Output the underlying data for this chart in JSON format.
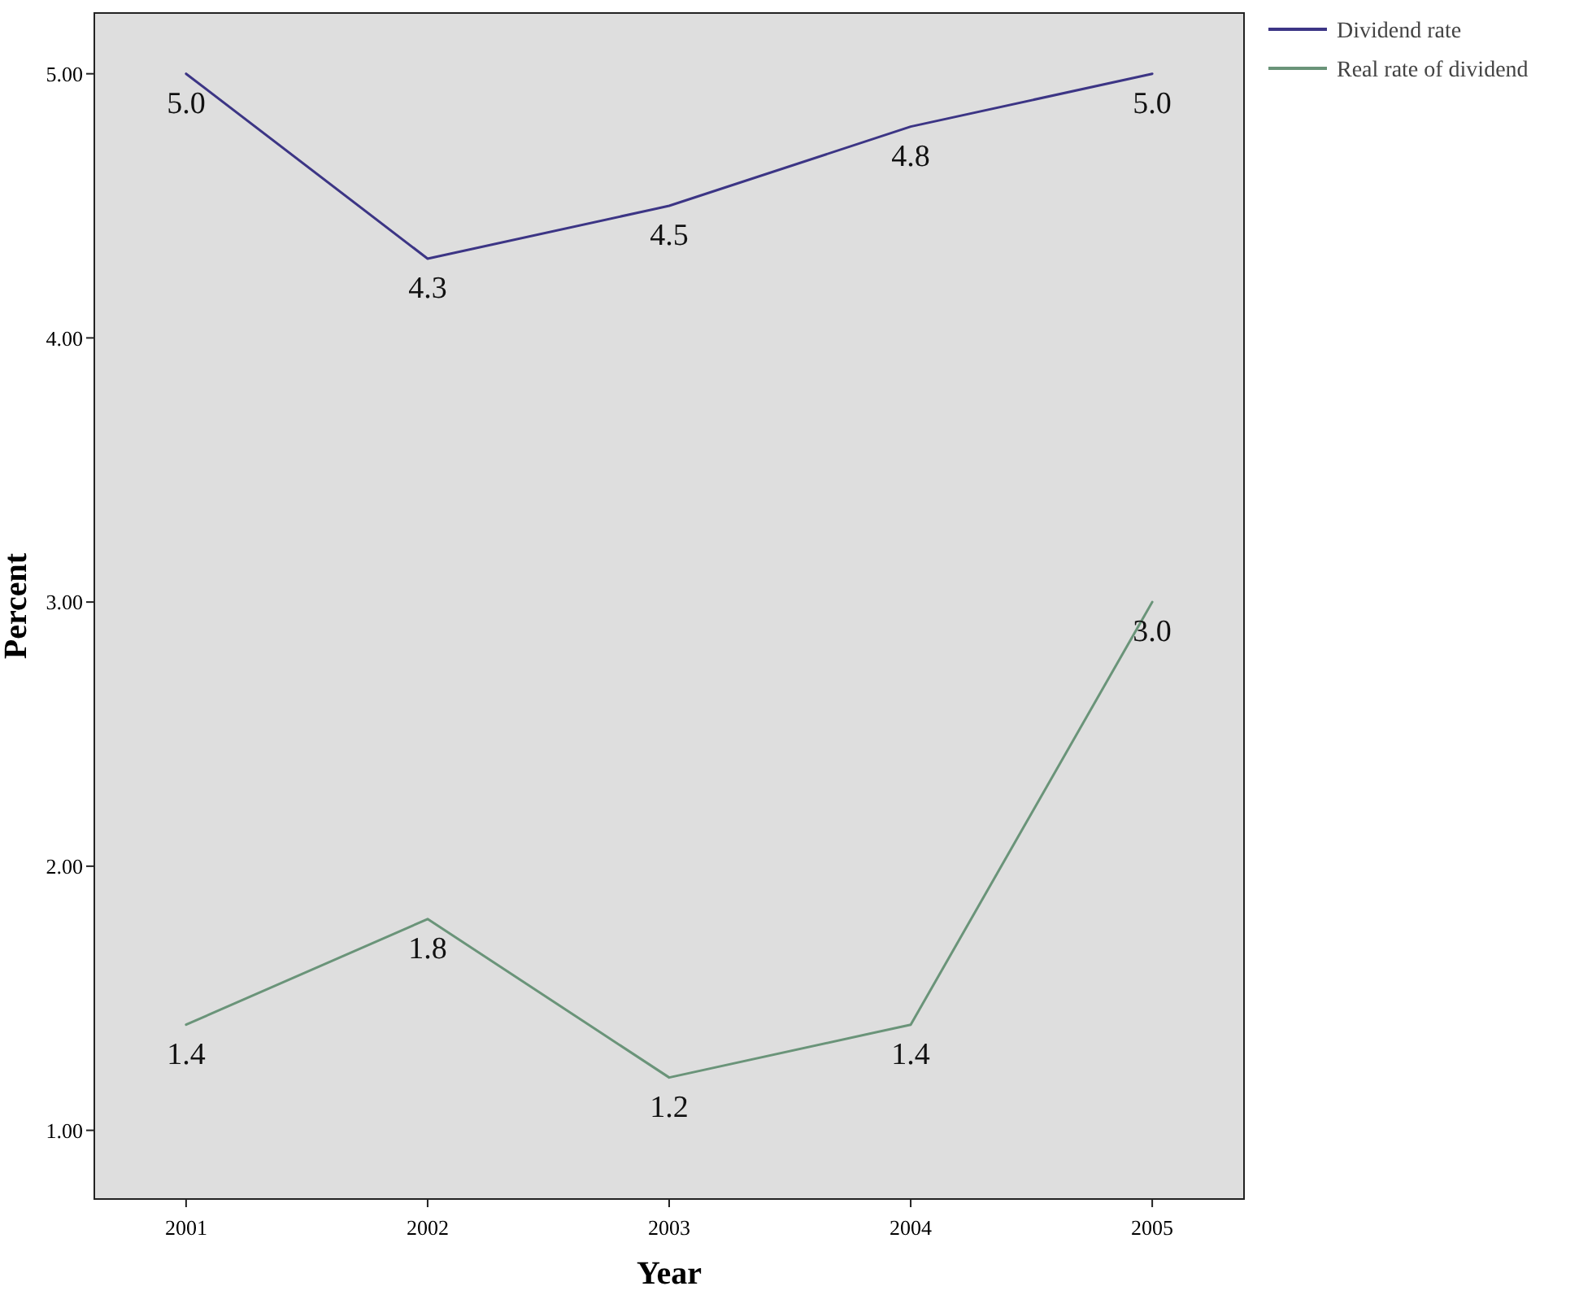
{
  "chart_data": {
    "type": "line",
    "xlabel": "Year",
    "ylabel": "Percent",
    "categories": [
      "2001",
      "2002",
      "2003",
      "2004",
      "2005"
    ],
    "series": [
      {
        "name": "Dividend rate",
        "color": "#3c3585",
        "values": [
          5.0,
          4.3,
          4.5,
          4.8,
          5.0
        ],
        "value_labels": [
          "5.0",
          "4.3",
          "4.5",
          "4.8",
          "5.0"
        ]
      },
      {
        "name": "Real rate of dividend",
        "color": "#6a9479",
        "values": [
          1.4,
          1.8,
          1.2,
          1.4,
          3.0
        ],
        "value_labels": [
          "1.4",
          "1.8",
          "1.2",
          "1.4",
          "3.0"
        ]
      }
    ],
    "ylim": [
      0.74,
      5.23
    ],
    "yticks": [
      {
        "value": 1,
        "label": "1.00"
      },
      {
        "value": 2,
        "label": "2.00"
      },
      {
        "value": 3,
        "label": "3.00"
      },
      {
        "value": 4,
        "label": "4.00"
      },
      {
        "value": 5,
        "label": "5.00"
      }
    ],
    "legend": "top right",
    "grid": false,
    "marker": "none",
    "line_style": "solid"
  }
}
